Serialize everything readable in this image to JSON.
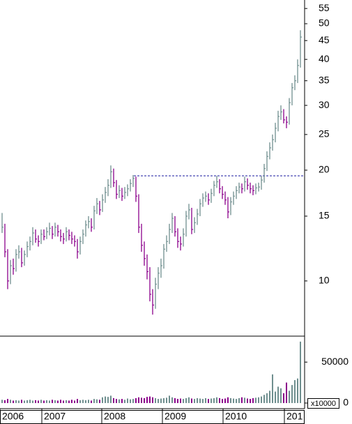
{
  "chart_data": {
    "type": "hlc",
    "up_color": "#6f8f8f",
    "down_color": "#8b008b",
    "log_scale": true,
    "xlim": [
      -0.75,
      108.5
    ],
    "ylim": [
      7.08,
      58
    ],
    "yticks": [
      10,
      15,
      20,
      25,
      30,
      35,
      40,
      45,
      50,
      55
    ],
    "xticks": [
      {
        "value": -0.75,
        "label": "2006"
      },
      {
        "value": 14.25,
        "label": "2007"
      },
      {
        "value": 35.75,
        "label": "2008"
      },
      {
        "value": 57.5,
        "label": "2009"
      },
      {
        "value": 79.25,
        "label": "2010"
      },
      {
        "value": 101.25,
        "label": "201"
      }
    ],
    "hline": {
      "value": 19.3,
      "start": 47.25,
      "color": "#1a1aa0"
    },
    "high": [
      15.3,
      14.3,
      12.2,
      11.4,
      11.5,
      12.2,
      12.5,
      12.3,
      12.1,
      12.8,
      13.2,
      14.0,
      13.8,
      13.3,
      13.8,
      13.8,
      14.0,
      14.4,
      14.1,
      14.4,
      14.2,
      13.8,
      13.5,
      14.0,
      13.8,
      13.6,
      13.3,
      13.0,
      13.2,
      13.8,
      14.6,
      15.0,
      14.8,
      16.0,
      16.8,
      16.5,
      17.2,
      18.0,
      18.9,
      20.6,
      20.2,
      18.8,
      18.2,
      17.9,
      18.0,
      18.3,
      18.9,
      19.4,
      19.2,
      17.2,
      14.3,
      12.8,
      11.8,
      10.9,
      9.5,
      10.2,
      10.9,
      11.5,
      12.6,
      13.3,
      14.3,
      15.3,
      15.0,
      13.9,
      13.2,
      13.9,
      15.5,
      16.2,
      15.8,
      14.9,
      15.7,
      16.7,
      17.3,
      17.5,
      17.3,
      17.8,
      18.7,
      19.3,
      18.9,
      18.1,
      17.5,
      16.9,
      16.9,
      17.5,
      18.1,
      18.5,
      18.4,
      19.2,
      19.0,
      18.5,
      18.2,
      18.4,
      18.5,
      19.3,
      20.8,
      22.5,
      23.8,
      25.0,
      26.9,
      29.0,
      30.0,
      29.3,
      28.0,
      31.4,
      34.5,
      36.2,
      40.0,
      48.0
    ],
    "low": [
      13.5,
      11.6,
      9.5,
      9.8,
      10.4,
      10.6,
      11.5,
      10.9,
      11.0,
      11.6,
      12.1,
      12.5,
      12.7,
      12.4,
      12.6,
      12.9,
      13.0,
      13.3,
      13.0,
      13.2,
      13.2,
      12.8,
      12.6,
      12.8,
      12.9,
      12.6,
      12.4,
      11.5,
      11.8,
      12.6,
      13.2,
      13.9,
      13.6,
      13.8,
      15.2,
      15.1,
      15.4,
      16.3,
      17.0,
      17.9,
      18.0,
      16.7,
      16.8,
      16.5,
      16.7,
      17.0,
      17.5,
      18.0,
      16.4,
      13.5,
      12.0,
      11.0,
      10.1,
      8.8,
      8.1,
      8.4,
      9.5,
      10.2,
      10.8,
      12.0,
      12.6,
      13.5,
      13.2,
      12.3,
      12.1,
      12.4,
      13.2,
      14.7,
      13.4,
      13.5,
      14.2,
      15.0,
      15.9,
      16.4,
      16.1,
      16.3,
      17.0,
      17.9,
      17.3,
      16.7,
      16.1,
      14.8,
      15.1,
      16.1,
      16.7,
      17.3,
      17.3,
      17.5,
      17.7,
      17.3,
      17.1,
      17.2,
      17.5,
      17.7,
      18.5,
      19.9,
      21.4,
      22.6,
      23.8,
      25.5,
      27.4,
      26.8,
      26.0,
      26.6,
      30.0,
      33.0,
      34.5,
      38.0
    ],
    "close": [
      14,
      12,
      10,
      11,
      10.8,
      11.8,
      12,
      11.2,
      11.8,
      12.4,
      12.8,
      13.5,
      13.0,
      12.8,
      13.4,
      13.2,
      13.6,
      13.9,
      13.4,
      14.0,
      13.6,
      13.2,
      13.0,
      13.6,
      13.3,
      13.0,
      12.8,
      12.0,
      12.8,
      13.4,
      14.2,
      14.5,
      14.0,
      15.5,
      16.2,
      15.6,
      16.6,
      17.4,
      18.2,
      19.8,
      18.5,
      17.2,
      17.6,
      17.0,
      17.4,
      17.8,
      18.4,
      19.0,
      17.0,
      14.0,
      12.5,
      11.5,
      10.6,
      9.2,
      8.6,
      9.8,
      10.5,
      11.0,
      12.2,
      12.8,
      13.8,
      14.8,
      13.6,
      12.8,
      12.6,
      13.4,
      15.0,
      15.6,
      13.8,
      14.4,
      15.2,
      16.2,
      16.8,
      17.0,
      16.6,
      17.3,
      18.2,
      18.6,
      17.8,
      17.2,
      16.6,
      15.4,
      16.4,
      17.0,
      17.6,
      18.0,
      17.8,
      18.6,
      18.2,
      17.8,
      17.6,
      17.9,
      18.0,
      18.8,
      20.2,
      21.8,
      23.0,
      24.2,
      26.0,
      28.0,
      28.8,
      27.4,
      27.0,
      30.5,
      33.5,
      35.0,
      38.5,
      46.0
    ],
    "volume": {
      "ylim": [
        -6000,
        80000
      ],
      "yticks": [
        0,
        50000
      ],
      "unit_label": "x10000",
      "values": [
        4000,
        3500,
        5000,
        4000,
        3000,
        3500,
        3000,
        4000,
        3000,
        3500,
        4000,
        3000,
        3500,
        3000,
        4000,
        3000,
        3500,
        3000,
        4000,
        3500,
        3000,
        4000,
        3000,
        3500,
        3000,
        4000,
        3000,
        5000,
        3500,
        4000,
        3500,
        4000,
        3000,
        5000,
        4500,
        4000,
        7000,
        8000,
        7500,
        9000,
        6000,
        5000,
        4500,
        5000,
        4000,
        5500,
        4500,
        5000,
        6000,
        7000,
        6500,
        6000,
        7500,
        8000,
        7000,
        6000,
        5000,
        5500,
        6000,
        6500,
        9000,
        7000,
        6000,
        5000,
        5500,
        5000,
        6000,
        7000,
        5500,
        5000,
        6000,
        5500,
        5000,
        6000,
        5000,
        5500,
        6000,
        7000,
        6000,
        5000,
        5500,
        7000,
        6000,
        5500,
        5000,
        6000,
        7000,
        6500,
        5500,
        5000,
        6000,
        6500,
        7000,
        8000,
        10000,
        12000,
        15000,
        35000,
        14000,
        20000,
        18000,
        12000,
        25000,
        15000,
        22000,
        28000,
        30000,
        75000
      ]
    }
  }
}
